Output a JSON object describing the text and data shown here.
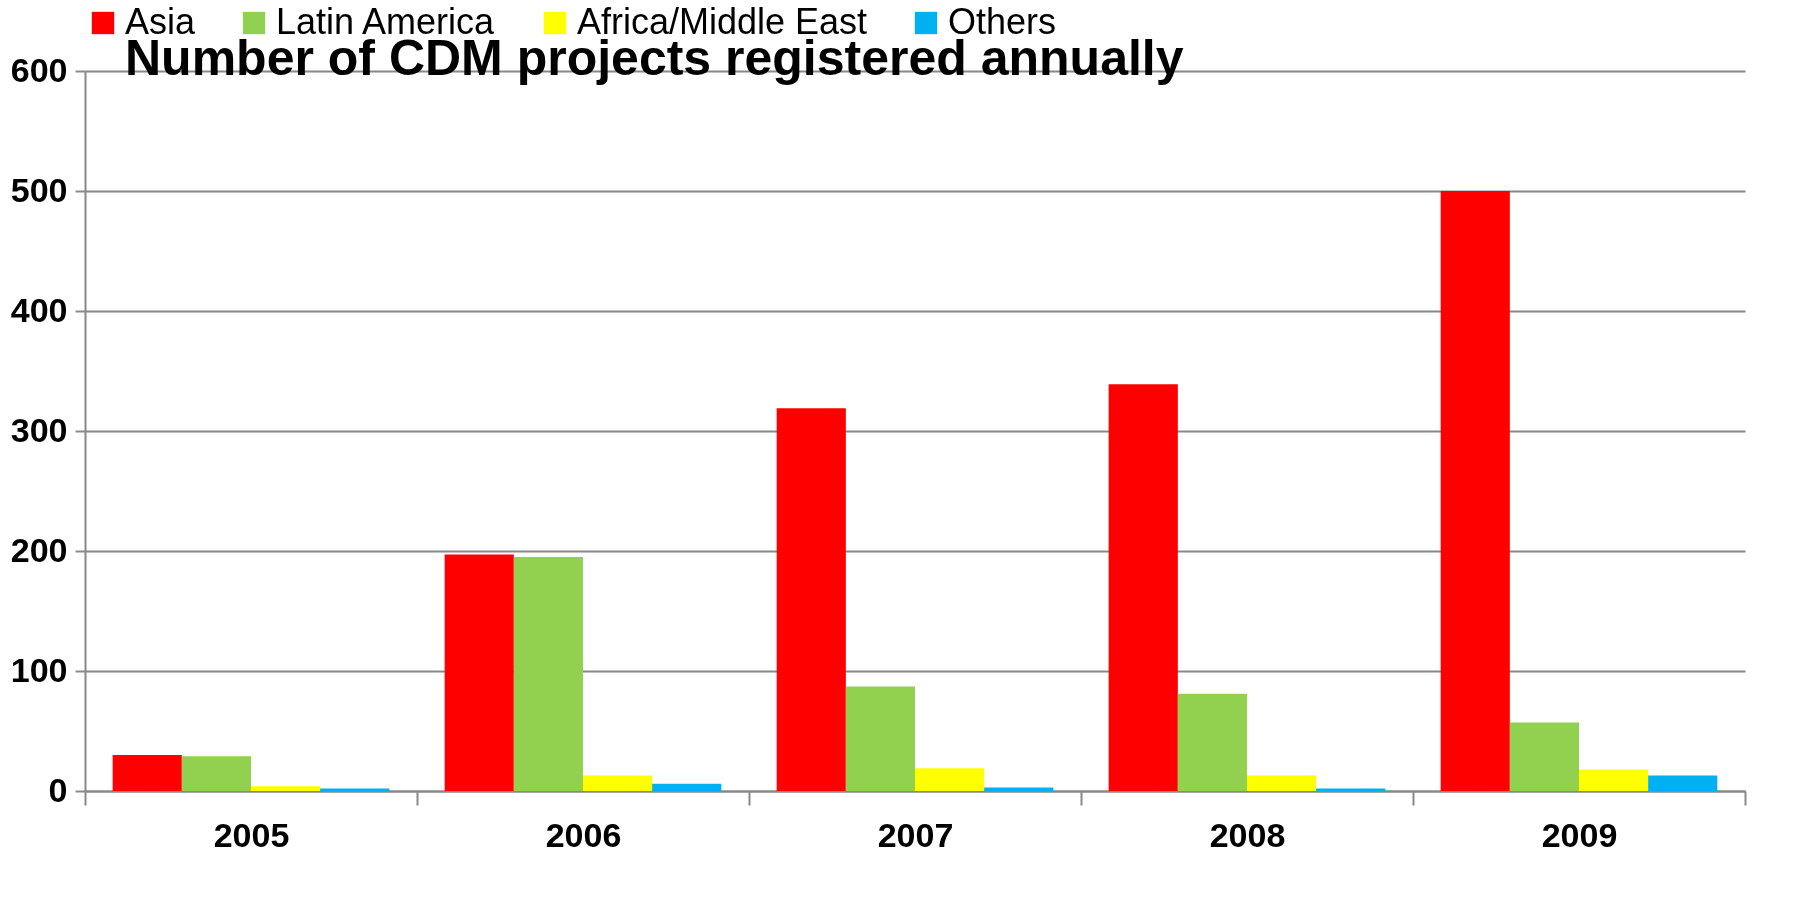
{
  "chart_data": {
    "type": "bar",
    "title": "Number of CDM projects registered annually",
    "categories": [
      "2005",
      "2006",
      "2007",
      "2008",
      "2009"
    ],
    "series": [
      {
        "name": "Asia",
        "color": "#ff0000",
        "values": [
          30,
          197,
          319,
          339,
          500
        ]
      },
      {
        "name": "Latin America",
        "color": "#92d050",
        "values": [
          29,
          195,
          87,
          81,
          57
        ]
      },
      {
        "name": "Africa/Middle East",
        "color": "#ffff00",
        "values": [
          4,
          13,
          19,
          13,
          18
        ]
      },
      {
        "name": "Others",
        "color": "#00b0f0",
        "values": [
          2,
          6,
          3,
          2,
          13
        ]
      }
    ],
    "ylim": [
      0,
      600
    ],
    "yticks": [
      0,
      100,
      200,
      300,
      400,
      500,
      600
    ],
    "grid": "y",
    "legend": "top"
  }
}
